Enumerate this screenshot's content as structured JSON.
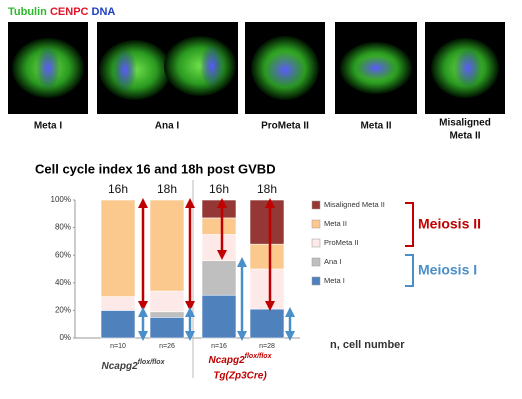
{
  "header": {
    "stains": [
      {
        "text": "Tubulin",
        "color": "#2db82d"
      },
      {
        "text": "CENPC",
        "color": "#e0162b"
      },
      {
        "text": "DNA",
        "color": "#1f3fbf"
      }
    ]
  },
  "images": [
    {
      "label": "Meta I"
    },
    {
      "label": "Ana I"
    },
    {
      "label": "ProMeta II"
    },
    {
      "label": "Meta II"
    },
    {
      "label": "Misaligned",
      "label2": "Meta II"
    }
  ],
  "chart_data": {
    "type": "bar",
    "stacked": true,
    "title": "Cell cycle index  16 and 18h post GVBD",
    "categories": [
      "16h",
      "18h",
      "16h",
      "18h"
    ],
    "counts": [
      "n=10",
      "n=26",
      "n=16",
      "n=28"
    ],
    "series": [
      {
        "name": "Meta I",
        "color": "#4f81bd",
        "values": [
          20,
          15,
          31,
          21
        ]
      },
      {
        "name": "Ana I",
        "color": "#bfbfbf",
        "values": [
          0,
          4,
          25,
          0
        ]
      },
      {
        "name": "ProMeta II",
        "color": "#fde9e7",
        "values": [
          10,
          15,
          19,
          29
        ]
      },
      {
        "name": "Meta II",
        "color": "#fbc98e",
        "values": [
          70,
          66,
          12,
          18
        ]
      },
      {
        "name": "Misaligned Meta II",
        "color": "#953735",
        "values": [
          0,
          0,
          13,
          32
        ]
      }
    ],
    "ylim": [
      0,
      100
    ],
    "yticks": [
      {
        "value": 0,
        "label": "0%"
      },
      {
        "value": 20,
        "label": "20%"
      },
      {
        "value": 40,
        "label": "40%"
      },
      {
        "value": 60,
        "label": "60%"
      },
      {
        "value": 80,
        "label": "80%"
      },
      {
        "value": 100,
        "label": "100%"
      }
    ],
    "groups": [
      {
        "name": "Ncapg2",
        "sup": "flox/flox",
        "color": "#404040"
      },
      {
        "name": "Ncapg2",
        "sup": "flox/flox",
        "line2": "Tg(Zp3Cre)",
        "color": "#c00000"
      }
    ],
    "brackets": [
      {
        "text": "Meiosis II",
        "color": "#c00000"
      },
      {
        "text": "Meiosis I",
        "color": "#4a8fc9"
      }
    ],
    "count_note": "n, cell number"
  }
}
